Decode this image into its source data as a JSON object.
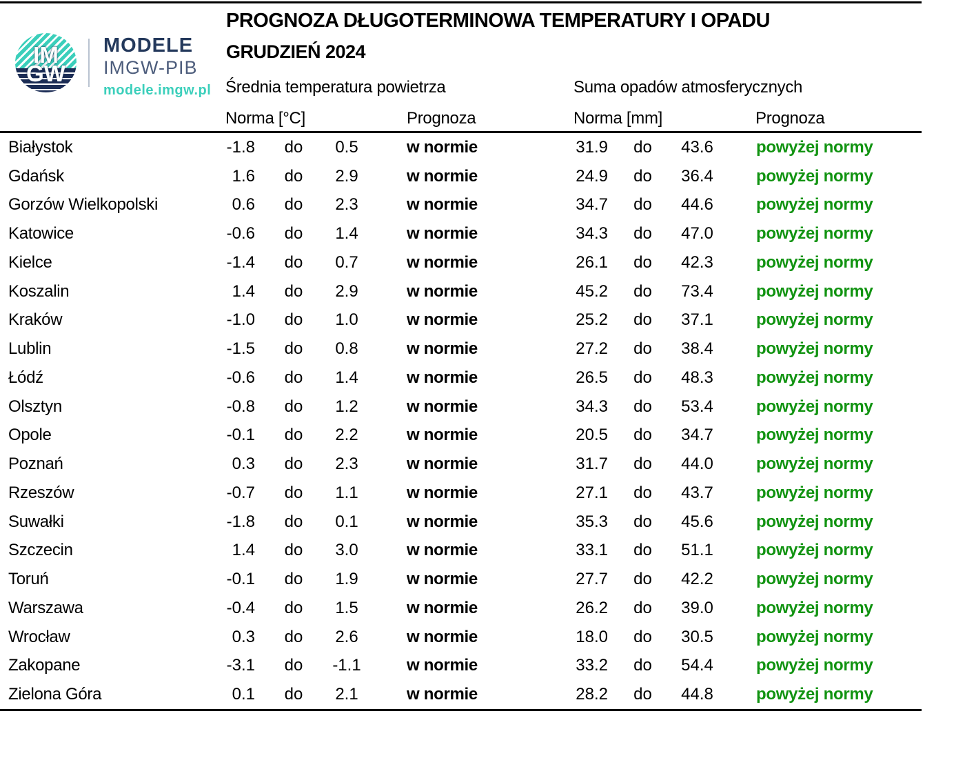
{
  "brand": {
    "logo_top": "IM",
    "logo_bottom": "GW",
    "line1": "MODELE",
    "line2": "IMGW-PIB",
    "url": "modele.imgw.pl"
  },
  "header": {
    "title": "PROGNOZA DŁUGOTERMINOWA TEMPERATURY I OPADU",
    "subtitle": "GRUDZIEŃ 2024"
  },
  "table": {
    "group_temp": "Średnia temperatura powietrza",
    "group_precip": "Suma opadów atmosferycznych",
    "col_temp_norm": "Norma [°C]",
    "col_temp_prog": "Prognoza",
    "col_precip_norm": "Norma [mm]",
    "col_precip_prog": "Prognoza",
    "separator": "do",
    "rows": [
      {
        "city": "Białystok",
        "t_low": "-1.8",
        "t_high": "0.5",
        "t_prog": "w normie",
        "p_low": "31.9",
        "p_high": "43.6",
        "p_prog": "powyżej normy"
      },
      {
        "city": "Gdańsk",
        "t_low": "1.6",
        "t_high": "2.9",
        "t_prog": "w normie",
        "p_low": "24.9",
        "p_high": "36.4",
        "p_prog": "powyżej normy"
      },
      {
        "city": "Gorzów Wielkopolski",
        "t_low": "0.6",
        "t_high": "2.3",
        "t_prog": "w normie",
        "p_low": "34.7",
        "p_high": "44.6",
        "p_prog": "powyżej normy"
      },
      {
        "city": "Katowice",
        "t_low": "-0.6",
        "t_high": "1.4",
        "t_prog": "w normie",
        "p_low": "34.3",
        "p_high": "47.0",
        "p_prog": "powyżej normy"
      },
      {
        "city": "Kielce",
        "t_low": "-1.4",
        "t_high": "0.7",
        "t_prog": "w normie",
        "p_low": "26.1",
        "p_high": "42.3",
        "p_prog": "powyżej normy"
      },
      {
        "city": "Koszalin",
        "t_low": "1.4",
        "t_high": "2.9",
        "t_prog": "w normie",
        "p_low": "45.2",
        "p_high": "73.4",
        "p_prog": "powyżej normy"
      },
      {
        "city": "Kraków",
        "t_low": "-1.0",
        "t_high": "1.0",
        "t_prog": "w normie",
        "p_low": "25.2",
        "p_high": "37.1",
        "p_prog": "powyżej normy"
      },
      {
        "city": "Lublin",
        "t_low": "-1.5",
        "t_high": "0.8",
        "t_prog": "w normie",
        "p_low": "27.2",
        "p_high": "38.4",
        "p_prog": "powyżej normy"
      },
      {
        "city": "Łódź",
        "t_low": "-0.6",
        "t_high": "1.4",
        "t_prog": "w normie",
        "p_low": "26.5",
        "p_high": "48.3",
        "p_prog": "powyżej normy"
      },
      {
        "city": "Olsztyn",
        "t_low": "-0.8",
        "t_high": "1.2",
        "t_prog": "w normie",
        "p_low": "34.3",
        "p_high": "53.4",
        "p_prog": "powyżej normy"
      },
      {
        "city": "Opole",
        "t_low": "-0.1",
        "t_high": "2.2",
        "t_prog": "w normie",
        "p_low": "20.5",
        "p_high": "34.7",
        "p_prog": "powyżej normy"
      },
      {
        "city": "Poznań",
        "t_low": "0.3",
        "t_high": "2.3",
        "t_prog": "w normie",
        "p_low": "31.7",
        "p_high": "44.0",
        "p_prog": "powyżej normy"
      },
      {
        "city": "Rzeszów",
        "t_low": "-0.7",
        "t_high": "1.1",
        "t_prog": "w normie",
        "p_low": "27.1",
        "p_high": "43.7",
        "p_prog": "powyżej normy"
      },
      {
        "city": "Suwałki",
        "t_low": "-1.8",
        "t_high": "0.1",
        "t_prog": "w normie",
        "p_low": "35.3",
        "p_high": "45.6",
        "p_prog": "powyżej normy"
      },
      {
        "city": "Szczecin",
        "t_low": "1.4",
        "t_high": "3.0",
        "t_prog": "w normie",
        "p_low": "33.1",
        "p_high": "51.1",
        "p_prog": "powyżej normy"
      },
      {
        "city": "Toruń",
        "t_low": "-0.1",
        "t_high": "1.9",
        "t_prog": "w normie",
        "p_low": "27.7",
        "p_high": "42.2",
        "p_prog": "powyżej normy"
      },
      {
        "city": "Warszawa",
        "t_low": "-0.4",
        "t_high": "1.5",
        "t_prog": "w normie",
        "p_low": "26.2",
        "p_high": "39.0",
        "p_prog": "powyżej normy"
      },
      {
        "city": "Wrocław",
        "t_low": "0.3",
        "t_high": "2.6",
        "t_prog": "w normie",
        "p_low": "18.0",
        "p_high": "30.5",
        "p_prog": "powyżej normy"
      },
      {
        "city": "Zakopane",
        "t_low": "-3.1",
        "t_high": "-1.1",
        "t_prog": "w normie",
        "p_low": "33.2",
        "p_high": "54.4",
        "p_prog": "powyżej normy"
      },
      {
        "city": "Zielona Góra",
        "t_low": "0.1",
        "t_high": "2.1",
        "t_prog": "w normie",
        "p_low": "28.2",
        "p_high": "44.8",
        "p_prog": "powyżej normy"
      }
    ]
  },
  "colors": {
    "prognoza_green": "#119311",
    "brand_navy": "#24395c",
    "brand_teal": "#3bcfbb",
    "logo_navy": "#1b2c55"
  }
}
